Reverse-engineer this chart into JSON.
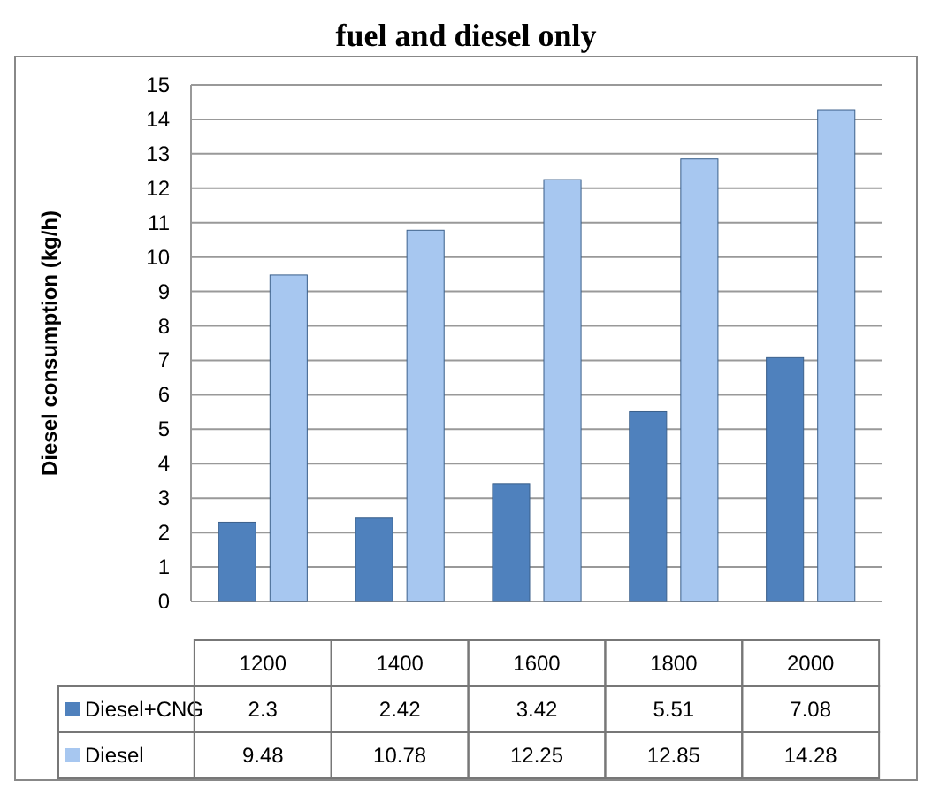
{
  "chart_data": {
    "type": "bar",
    "title": "fuel and diesel only",
    "ylabel": "Diesel consumption (kg/h)",
    "categories": [
      "1200",
      "1400",
      "1600",
      "1800",
      "2000"
    ],
    "series": [
      {
        "name": "Diesel+CNG",
        "color": "#4f81bd",
        "values": [
          2.3,
          2.42,
          3.42,
          5.51,
          7.08
        ]
      },
      {
        "name": "Diesel",
        "color": "#a7c7f0",
        "values": [
          9.48,
          10.78,
          12.25,
          12.85,
          14.28
        ]
      }
    ],
    "ylim": [
      0,
      15
    ],
    "yticks": [
      0,
      1,
      2,
      3,
      4,
      5,
      6,
      7,
      8,
      9,
      10,
      11,
      12,
      13,
      14,
      15
    ],
    "grid": "y",
    "data_labels": true,
    "legend": "bottom"
  }
}
